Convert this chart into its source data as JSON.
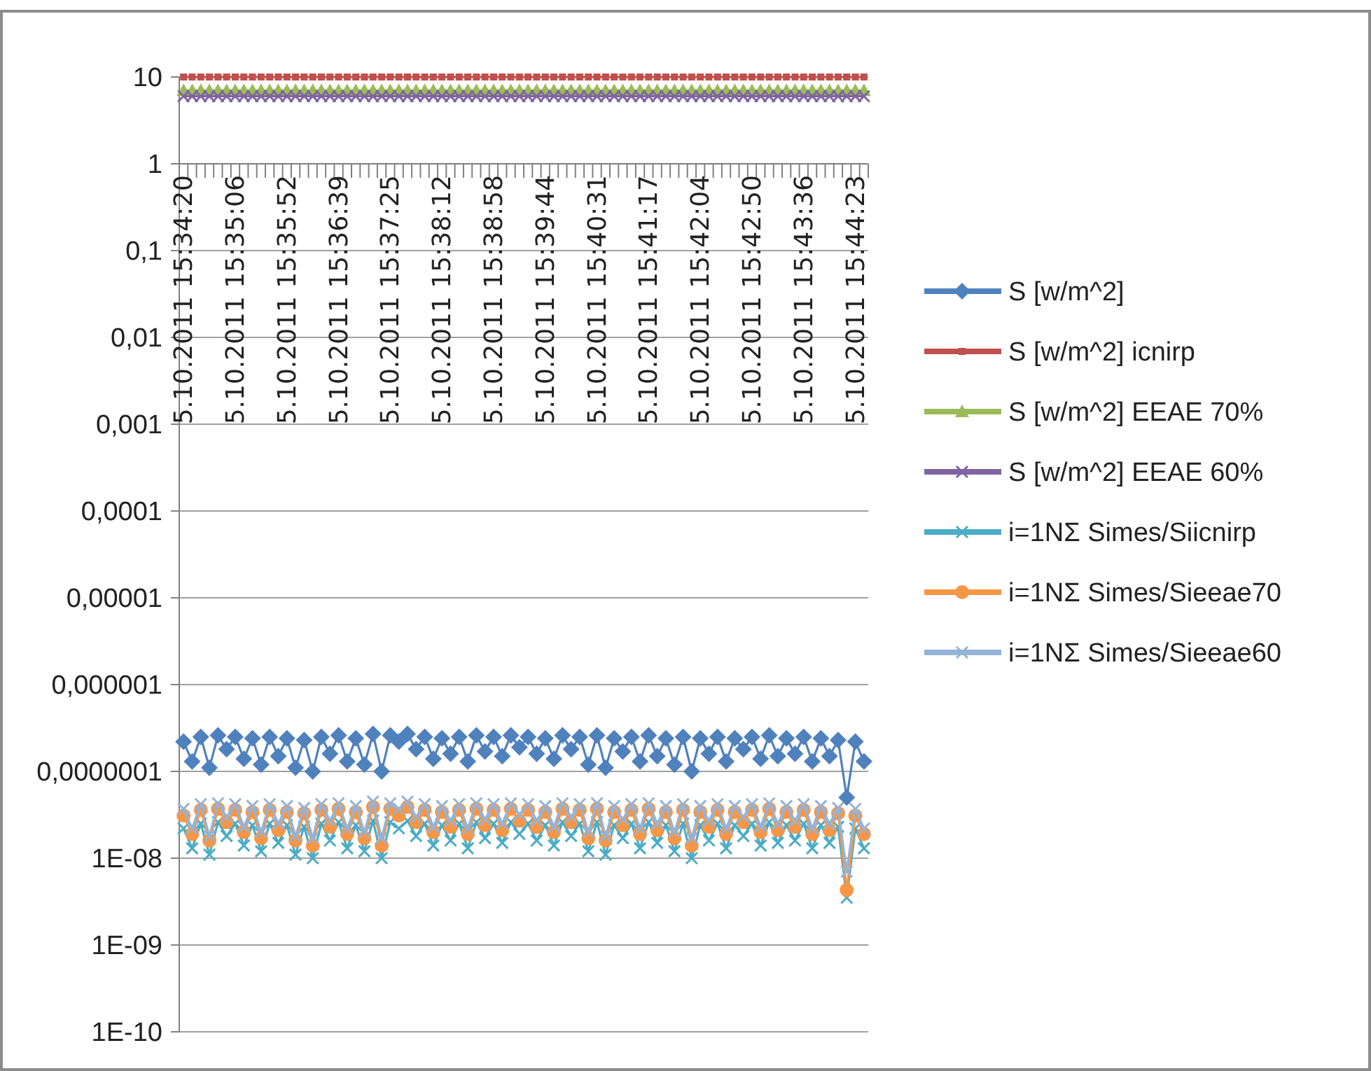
{
  "chart_data": {
    "type": "line",
    "log": "y",
    "grid": "y",
    "legend": "right",
    "line_style": "solid",
    "categories": [
      "5.10.2011 15:34:20",
      null,
      null,
      null,
      null,
      null,
      "5.10.2011 15:35:06",
      null,
      null,
      null,
      null,
      null,
      "5.10.2011 15:35:52",
      null,
      null,
      null,
      null,
      null,
      "5.10.2011 15:36:39",
      null,
      null,
      null,
      null,
      null,
      "5.10.2011 15:37:25",
      null,
      null,
      null,
      null,
      null,
      "5.10.2011 15:38:12",
      null,
      null,
      null,
      null,
      null,
      "5.10.2011 15:38:58",
      null,
      null,
      null,
      null,
      null,
      "5.10.2011 15:39:44",
      null,
      null,
      null,
      null,
      null,
      "5.10.2011 15:40:31",
      null,
      null,
      null,
      null,
      null,
      "5.10.2011 15:41:17",
      null,
      null,
      null,
      null,
      null,
      "5.10.2011 15:42:04",
      null,
      null,
      null,
      null,
      null,
      "5.10.2011 15:42:50",
      null,
      null,
      null,
      null,
      null,
      "5.10.2011 15:43:36",
      null,
      null,
      null,
      null,
      null,
      "5.10.2011 15:44:23",
      null
    ],
    "ylim": [
      1e-10,
      10
    ],
    "yticks": [
      {
        "value": 1e-10,
        "label": "1E-10"
      },
      {
        "value": 1e-09,
        "label": "1E-09"
      },
      {
        "value": 1e-08,
        "label": "1E-08"
      },
      {
        "value": 1e-07,
        "label": "0,0000001"
      },
      {
        "value": 1e-06,
        "label": "0,000001"
      },
      {
        "value": 1e-05,
        "label": "0,00001"
      },
      {
        "value": 0.0001,
        "label": "0,0001"
      },
      {
        "value": 0.001,
        "label": "0,001"
      },
      {
        "value": 0.01,
        "label": "0,01"
      },
      {
        "value": 0.1,
        "label": "0,1"
      },
      1,
      10
    ],
    "series": [
      {
        "name": "S [w/m^2]",
        "color": "#4f81bd",
        "marker": "diamond",
        "values": [
          2.2e-07,
          1.3e-07,
          2.5e-07,
          1.1e-07,
          2.6e-07,
          1.8e-07,
          2.5e-07,
          1.4e-07,
          2.4e-07,
          1.2e-07,
          2.5e-07,
          1.5e-07,
          2.4e-07,
          1.1e-07,
          2.3e-07,
          1e-07,
          2.5e-07,
          1.6e-07,
          2.6e-07,
          1.3e-07,
          2.4e-07,
          1.2e-07,
          2.7e-07,
          1e-07,
          2.6e-07,
          2.2e-07,
          2.7e-07,
          1.8e-07,
          2.5e-07,
          1.4e-07,
          2.4e-07,
          1.6e-07,
          2.5e-07,
          1.3e-07,
          2.6e-07,
          1.7e-07,
          2.5e-07,
          1.5e-07,
          2.6e-07,
          1.9e-07,
          2.5e-07,
          1.6e-07,
          2.4e-07,
          1.4e-07,
          2.6e-07,
          1.8e-07,
          2.5e-07,
          1.2e-07,
          2.6e-07,
          1.1e-07,
          2.4e-07,
          1.7e-07,
          2.5e-07,
          1.3e-07,
          2.6e-07,
          1.5e-07,
          2.4e-07,
          1.2e-07,
          2.5e-07,
          1e-07,
          2.4e-07,
          1.6e-07,
          2.5e-07,
          1.3e-07,
          2.4e-07,
          1.8e-07,
          2.5e-07,
          1.4e-07,
          2.6e-07,
          1.5e-07,
          2.4e-07,
          1.6e-07,
          2.5e-07,
          1.3e-07,
          2.4e-07,
          1.5e-07,
          2.3e-07,
          5e-08,
          2.2e-07,
          1.3e-07
        ]
      },
      {
        "name": "S [w/m^2] icnirp",
        "color": "#c0504d",
        "marker": "square",
        "values": [
          10,
          10,
          10,
          10,
          10,
          10,
          10,
          10,
          10,
          10,
          10,
          10,
          10,
          10,
          10,
          10,
          10,
          10,
          10,
          10,
          10,
          10,
          10,
          10,
          10,
          10,
          10,
          10,
          10,
          10,
          10,
          10,
          10,
          10,
          10,
          10,
          10,
          10,
          10,
          10,
          10,
          10,
          10,
          10,
          10,
          10,
          10,
          10,
          10,
          10,
          10,
          10,
          10,
          10,
          10,
          10,
          10,
          10,
          10,
          10,
          10,
          10,
          10,
          10,
          10,
          10,
          10,
          10,
          10,
          10,
          10,
          10,
          10,
          10,
          10,
          10,
          10,
          10,
          10,
          10
        ]
      },
      {
        "name": "S [w/m^2] EEAE 70%",
        "color": "#9bbb59",
        "marker": "triangle",
        "values": [
          7,
          7,
          7,
          7,
          7,
          7,
          7,
          7,
          7,
          7,
          7,
          7,
          7,
          7,
          7,
          7,
          7,
          7,
          7,
          7,
          7,
          7,
          7,
          7,
          7,
          7,
          7,
          7,
          7,
          7,
          7,
          7,
          7,
          7,
          7,
          7,
          7,
          7,
          7,
          7,
          7,
          7,
          7,
          7,
          7,
          7,
          7,
          7,
          7,
          7,
          7,
          7,
          7,
          7,
          7,
          7,
          7,
          7,
          7,
          7,
          7,
          7,
          7,
          7,
          7,
          7,
          7,
          7,
          7,
          7,
          7,
          7,
          7,
          7,
          7,
          7,
          7,
          7,
          7,
          7
        ]
      },
      {
        "name": "S [w/m^2] EEAE 60%",
        "color": "#8064a2",
        "marker": "cross",
        "values": [
          6,
          6,
          6,
          6,
          6,
          6,
          6,
          6,
          6,
          6,
          6,
          6,
          6,
          6,
          6,
          6,
          6,
          6,
          6,
          6,
          6,
          6,
          6,
          6,
          6,
          6,
          6,
          6,
          6,
          6,
          6,
          6,
          6,
          6,
          6,
          6,
          6,
          6,
          6,
          6,
          6,
          6,
          6,
          6,
          6,
          6,
          6,
          6,
          6,
          6,
          6,
          6,
          6,
          6,
          6,
          6,
          6,
          6,
          6,
          6,
          6,
          6,
          6,
          6,
          6,
          6,
          6,
          6,
          6,
          6,
          6,
          6,
          6,
          6,
          6,
          6,
          6,
          6,
          6,
          6
        ]
      },
      {
        "name": "i=1NΣ Simes/Siicnirp",
        "color": "#4bacc6",
        "marker": "cross",
        "values": [
          2.2e-08,
          1.3e-08,
          2.5e-08,
          1.1e-08,
          2.6e-08,
          1.8e-08,
          2.5e-08,
          1.4e-08,
          2.4e-08,
          1.2e-08,
          2.5e-08,
          1.5e-08,
          2.4e-08,
          1.1e-08,
          2.3e-08,
          1e-08,
          2.5e-08,
          1.6e-08,
          2.6e-08,
          1.3e-08,
          2.4e-08,
          1.2e-08,
          2.7e-08,
          1e-08,
          2.6e-08,
          2.2e-08,
          2.7e-08,
          1.8e-08,
          2.5e-08,
          1.4e-08,
          2.4e-08,
          1.6e-08,
          2.5e-08,
          1.3e-08,
          2.6e-08,
          1.7e-08,
          2.5e-08,
          1.5e-08,
          2.6e-08,
          1.9e-08,
          2.5e-08,
          1.6e-08,
          2.4e-08,
          1.4e-08,
          2.6e-08,
          1.8e-08,
          2.5e-08,
          1.2e-08,
          2.6e-08,
          1.1e-08,
          2.4e-08,
          1.7e-08,
          2.5e-08,
          1.3e-08,
          2.6e-08,
          1.5e-08,
          2.4e-08,
          1.2e-08,
          2.5e-08,
          1e-08,
          2.4e-08,
          1.6e-08,
          2.5e-08,
          1.3e-08,
          2.4e-08,
          1.8e-08,
          2.5e-08,
          1.4e-08,
          2.6e-08,
          1.5e-08,
          2.4e-08,
          1.6e-08,
          2.5e-08,
          1.3e-08,
          2.4e-08,
          1.5e-08,
          2.3e-08,
          3.5e-09,
          2.2e-08,
          1.3e-08
        ]
      },
      {
        "name": "i=1NΣ Simes/Sieeae70",
        "color": "#f79646",
        "marker": "circle",
        "values": [
          3.1e-08,
          1.9e-08,
          3.6e-08,
          1.6e-08,
          3.7e-08,
          2.6e-08,
          3.6e-08,
          2e-08,
          3.4e-08,
          1.7e-08,
          3.6e-08,
          2.1e-08,
          3.4e-08,
          1.6e-08,
          3.3e-08,
          1.4e-08,
          3.6e-08,
          2.3e-08,
          3.7e-08,
          1.9e-08,
          3.4e-08,
          1.7e-08,
          3.9e-08,
          1.4e-08,
          3.7e-08,
          3.1e-08,
          3.9e-08,
          2.6e-08,
          3.6e-08,
          2e-08,
          3.4e-08,
          2.3e-08,
          3.6e-08,
          1.9e-08,
          3.7e-08,
          2.4e-08,
          3.6e-08,
          2.1e-08,
          3.7e-08,
          2.7e-08,
          3.6e-08,
          2.3e-08,
          3.4e-08,
          2e-08,
          3.7e-08,
          2.6e-08,
          3.6e-08,
          1.7e-08,
          3.7e-08,
          1.6e-08,
          3.4e-08,
          2.4e-08,
          3.6e-08,
          1.9e-08,
          3.7e-08,
          2.1e-08,
          3.4e-08,
          1.7e-08,
          3.6e-08,
          1.4e-08,
          3.4e-08,
          2.3e-08,
          3.6e-08,
          1.9e-08,
          3.4e-08,
          2.6e-08,
          3.6e-08,
          2e-08,
          3.7e-08,
          2.1e-08,
          3.4e-08,
          2.3e-08,
          3.6e-08,
          1.9e-08,
          3.4e-08,
          2.1e-08,
          3.3e-08,
          4.3e-09,
          3.1e-08,
          1.9e-08
        ]
      },
      {
        "name": "i=1NΣ Simes/Sieeae60",
        "color": "#95b3d7",
        "marker": "cross",
        "values": [
          3.7e-08,
          2.2e-08,
          4.2e-08,
          1.8e-08,
          4.3e-08,
          3e-08,
          4.2e-08,
          2.3e-08,
          4e-08,
          2e-08,
          4.2e-08,
          2.5e-08,
          4e-08,
          1.8e-08,
          3.8e-08,
          1.7e-08,
          4.2e-08,
          2.7e-08,
          4.3e-08,
          2.2e-08,
          4e-08,
          2e-08,
          4.5e-08,
          1.7e-08,
          4.3e-08,
          3.7e-08,
          4.5e-08,
          3e-08,
          4.2e-08,
          2.3e-08,
          4e-08,
          2.7e-08,
          4.2e-08,
          2.2e-08,
          4.3e-08,
          2.8e-08,
          4.2e-08,
          2.5e-08,
          4.3e-08,
          3.2e-08,
          4.2e-08,
          2.7e-08,
          4e-08,
          2.3e-08,
          4.3e-08,
          3e-08,
          4.2e-08,
          2e-08,
          4.3e-08,
          1.8e-08,
          4e-08,
          2.8e-08,
          4.2e-08,
          2.2e-08,
          4.3e-08,
          2.5e-08,
          4e-08,
          2e-08,
          4.2e-08,
          1.7e-08,
          4e-08,
          2.7e-08,
          4.2e-08,
          2.2e-08,
          4e-08,
          3e-08,
          4.2e-08,
          2.3e-08,
          4.3e-08,
          2.5e-08,
          4e-08,
          2.7e-08,
          4.2e-08,
          2.2e-08,
          4e-08,
          2.5e-08,
          3.8e-08,
          7e-09,
          3.7e-08,
          2.2e-08
        ]
      }
    ]
  }
}
